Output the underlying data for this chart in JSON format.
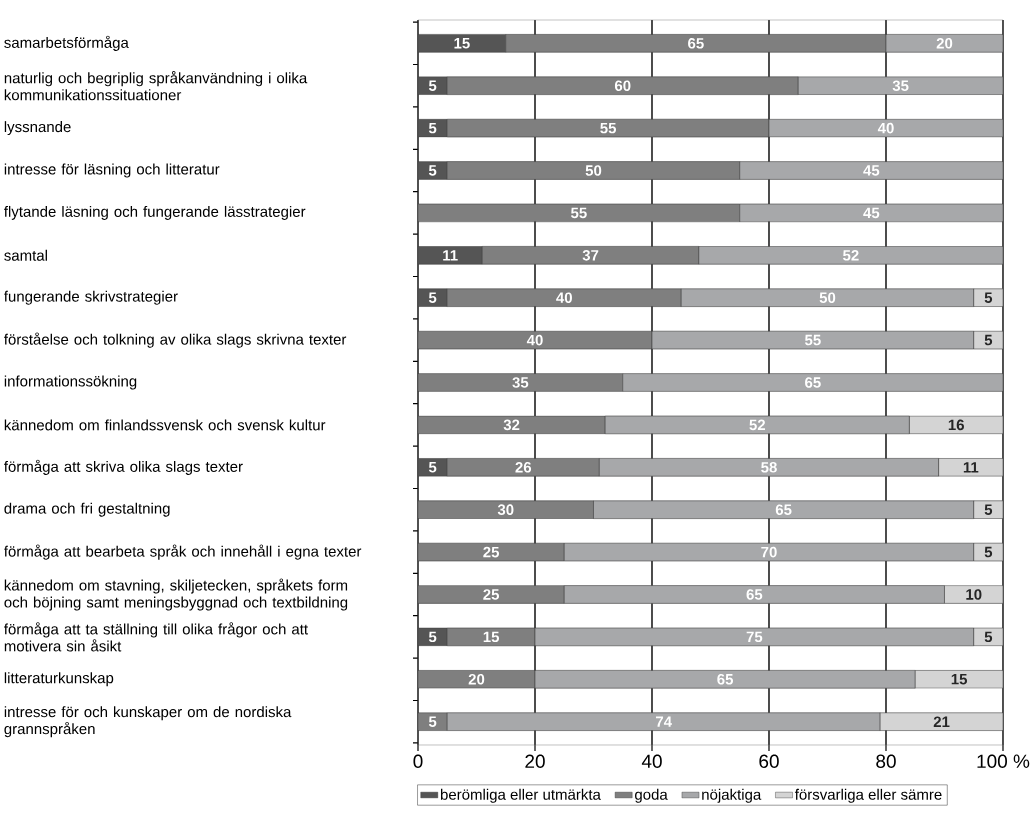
{
  "chart_data": {
    "type": "bar",
    "orientation": "horizontal",
    "stacked": true,
    "data_labels": true,
    "categories": [
      "samarbetsförmåga",
      "naturlig och begriplig språkanvändning i olika kommunikationssituationer",
      "lyssnande",
      "intresse för läsning och litteratur",
      "flytande läsning och fungerande lässtrategier",
      "samtal",
      "fungerande skrivstrategier",
      "förståelse och tolkning av olika slags skrivna texter",
      "informationssökning",
      "kännedom om finlandssvensk och svensk kultur",
      "förmåga att skriva olika slags texter",
      "drama och fri gestaltning",
      "förmåga att bearbeta språk och innehåll i egna texter",
      "kännedom om stavning, skiljetecken, språkets form och böjning samt meningsbyggnad och textbildning",
      "förmåga att ta ställning till olika frågor och att motivera sin åsikt",
      "litteraturkunskap",
      "intresse för och kunskaper om de nordiska grannspråken"
    ],
    "series": [
      {
        "name": "berömliga eller utmärkta",
        "color": "#555555",
        "values": [
          15,
          5,
          5,
          5,
          null,
          11,
          5,
          null,
          null,
          null,
          5,
          null,
          null,
          null,
          5,
          null,
          null
        ]
      },
      {
        "name": "goda",
        "color": "#7f7f7f",
        "values": [
          65,
          60,
          55,
          50,
          55,
          37,
          40,
          40,
          35,
          32,
          26,
          30,
          25,
          25,
          15,
          20,
          5
        ]
      },
      {
        "name": "nöjaktiga",
        "color": "#a7a8aa",
        "values": [
          20,
          35,
          40,
          45,
          45,
          52,
          50,
          55,
          65,
          52,
          58,
          65,
          70,
          65,
          75,
          65,
          74
        ]
      },
      {
        "name": "försvarliga eller sämre",
        "color": "#d4d4d4",
        "values": [
          null,
          null,
          null,
          null,
          null,
          null,
          5,
          5,
          null,
          16,
          11,
          5,
          5,
          10,
          5,
          15,
          21
        ]
      }
    ],
    "xlim": [
      0,
      100
    ],
    "xticks": [
      0,
      20,
      40,
      60,
      80,
      {
        "value": 100,
        "label": "100 %"
      }
    ],
    "grid": "x",
    "legend": "bottom"
  }
}
